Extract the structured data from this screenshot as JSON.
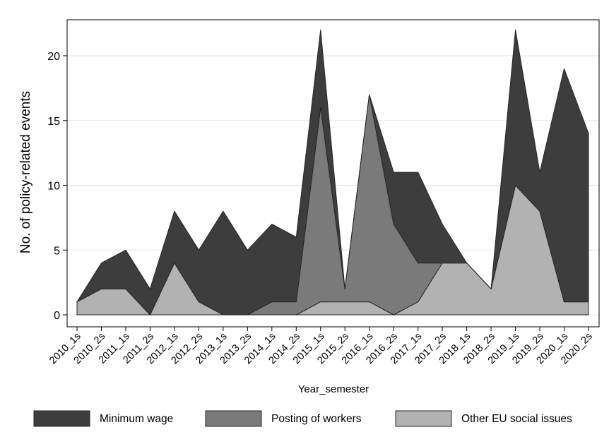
{
  "chart_data": {
    "type": "area",
    "stacked": true,
    "xlabel": "Year_semester",
    "ylabel": "No. of policy-related events",
    "ylim": [
      0,
      23
    ],
    "yticks": [
      0,
      5,
      10,
      15,
      20
    ],
    "grid": true,
    "legend_position": "bottom",
    "categories": [
      "2010_1s",
      "2010_2s",
      "2011_1s",
      "2011_2s",
      "2012_1s",
      "2012_2s",
      "2013_1s",
      "2013_2s",
      "2014_1s",
      "2014_2s",
      "2015_1s",
      "2015_2s",
      "2016_1s",
      "2016_2s",
      "2017_1s",
      "2017_2s",
      "2018_1s",
      "2018_2s",
      "2019_1s",
      "2019_2s",
      "2020_1s",
      "2020_2s"
    ],
    "series": [
      {
        "name": "Other EU social issues",
        "color": "#b2b2b2",
        "values": [
          1,
          2,
          2,
          0,
          4,
          1,
          0,
          0,
          0,
          0,
          1,
          1,
          1,
          0,
          1,
          4,
          4,
          2,
          10,
          8,
          1,
          1
        ]
      },
      {
        "name": "Posting of workers",
        "color": "#7a7a7a",
        "values": [
          0,
          0,
          0,
          0,
          0,
          0,
          0,
          0,
          1,
          1,
          15,
          1,
          16,
          7,
          3,
          0,
          0,
          0,
          0,
          0,
          0,
          0
        ]
      },
      {
        "name": "Minimum wage",
        "color": "#3d3d3d",
        "values": [
          0,
          2,
          3,
          2,
          4,
          4,
          8,
          5,
          6,
          5,
          6,
          0,
          0,
          4,
          7,
          3,
          0,
          0,
          12,
          3,
          18,
          13
        ]
      }
    ],
    "legend_order": [
      "Minimum wage",
      "Posting of workers",
      "Other EU social issues"
    ]
  }
}
